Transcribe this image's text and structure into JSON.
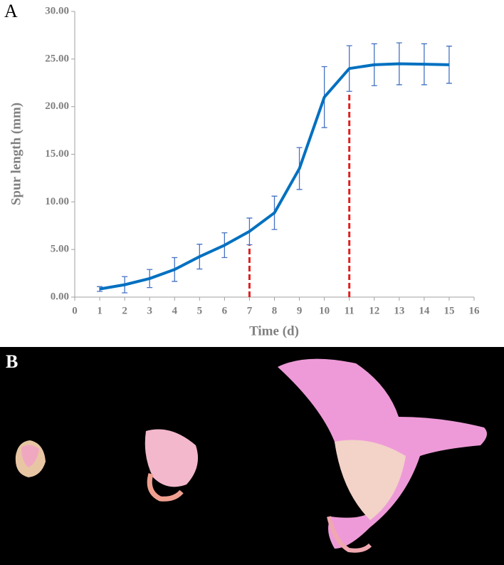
{
  "panels": {
    "a_label": "A",
    "b_label": "B"
  },
  "chart_data": {
    "type": "line",
    "x_label": "Time (d)",
    "y_label": "Spur length (mm)",
    "x": [
      1,
      2,
      3,
      4,
      5,
      6,
      7,
      8,
      9,
      10,
      11,
      12,
      13,
      14,
      15
    ],
    "values": [
      0.85,
      1.3,
      1.95,
      2.9,
      4.25,
      5.45,
      6.9,
      8.85,
      13.5,
      21.0,
      24.0,
      24.4,
      24.5,
      24.45,
      24.4
    ],
    "errors": [
      0.25,
      0.85,
      0.95,
      1.25,
      1.3,
      1.3,
      1.4,
      1.75,
      2.2,
      3.2,
      2.4,
      2.2,
      2.2,
      2.15,
      1.95
    ],
    "color": "#0070c0",
    "error_color": "#4472c4",
    "reference_lines": [
      {
        "x": 7,
        "y": 5.5
      },
      {
        "x": 11,
        "y": 21.5
      }
    ],
    "reference_color": "#e02020",
    "xlim": [
      0,
      16
    ],
    "xticks": [
      0,
      1,
      2,
      3,
      4,
      5,
      6,
      7,
      8,
      9,
      10,
      11,
      12,
      13,
      14,
      15,
      16
    ],
    "ylim": [
      0,
      30
    ],
    "yticks": [
      {
        "value": 0,
        "label": "0.00"
      },
      {
        "value": 5,
        "label": "5.00"
      },
      {
        "value": 10,
        "label": "10.00"
      },
      {
        "value": 15,
        "label": "15.00"
      },
      {
        "value": 20,
        "label": "20.00"
      },
      {
        "value": 25,
        "label": "25.00"
      },
      {
        "value": 30,
        "label": "30.00"
      }
    ]
  }
}
